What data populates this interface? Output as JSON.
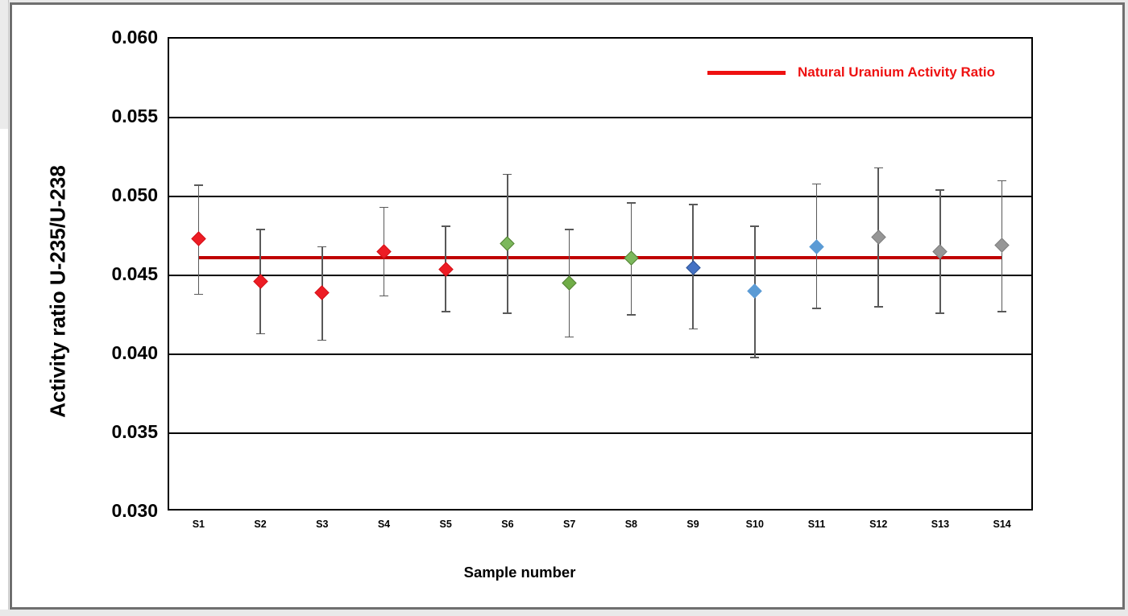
{
  "chart_data": {
    "type": "scatter",
    "title": "",
    "ylabel": "Activity ratio U-235/U-238",
    "xlabel": "Sample number",
    "ylim": [
      0.03,
      0.06
    ],
    "ytick_step": 0.005,
    "ytick_labels": [
      "0.060",
      "0.055",
      "0.050",
      "0.045",
      "0.040",
      "0.035",
      "0.030"
    ],
    "categories": [
      "S1",
      "S2",
      "S3",
      "S4",
      "S5",
      "S6",
      "S7",
      "S8",
      "S9",
      "S10",
      "S11",
      "S12",
      "S13",
      "S14"
    ],
    "grid": true,
    "legend_position": "top-right",
    "error_bar_color": "#595959",
    "points": [
      {
        "label": "S1",
        "value": 0.0472,
        "upper": 0.0506,
        "lower": 0.0437,
        "fill": "#ED1C24",
        "stroke": "#d41118"
      },
      {
        "label": "S2",
        "value": 0.0445,
        "upper": 0.0478,
        "lower": 0.0412,
        "fill": "#ED1C24",
        "stroke": "#d41118"
      },
      {
        "label": "S3",
        "value": 0.0438,
        "upper": 0.0467,
        "lower": 0.0408,
        "fill": "#ED1C24",
        "stroke": "#d41118"
      },
      {
        "label": "S4",
        "value": 0.0464,
        "upper": 0.0492,
        "lower": 0.0436,
        "fill": "#ED1C24",
        "stroke": "#d41118"
      },
      {
        "label": "S5",
        "value": 0.0453,
        "upper": 0.048,
        "lower": 0.0426,
        "fill": "#ED1C24",
        "stroke": "#d41118"
      },
      {
        "label": "S6",
        "value": 0.0469,
        "upper": 0.0513,
        "lower": 0.0425,
        "fill": "#7CB85C",
        "stroke": "#548235"
      },
      {
        "label": "S7",
        "value": 0.0444,
        "upper": 0.0478,
        "lower": 0.041,
        "fill": "#70AD47",
        "stroke": "#548235"
      },
      {
        "label": "S8",
        "value": 0.046,
        "upper": 0.0495,
        "lower": 0.0424,
        "fill": "#7CB85C",
        "stroke": "#548235"
      },
      {
        "label": "S9",
        "value": 0.0454,
        "upper": 0.0494,
        "lower": 0.0415,
        "fill": "#4472C4",
        "stroke": "#2f5597"
      },
      {
        "label": "S10",
        "value": 0.0439,
        "upper": 0.048,
        "lower": 0.0397,
        "fill": "#5B9BD5",
        "stroke": "#5B9BD5"
      },
      {
        "label": "S11",
        "value": 0.0467,
        "upper": 0.0507,
        "lower": 0.0428,
        "fill": "#5B9BD5",
        "stroke": "#5B9BD5"
      },
      {
        "label": "S12",
        "value": 0.0473,
        "upper": 0.0517,
        "lower": 0.0429,
        "fill": "#969696",
        "stroke": "#7f7f7f"
      },
      {
        "label": "S13",
        "value": 0.0464,
        "upper": 0.0503,
        "lower": 0.0425,
        "fill": "#969696",
        "stroke": "#7f7f7f"
      },
      {
        "label": "S14",
        "value": 0.0468,
        "upper": 0.0509,
        "lower": 0.0426,
        "fill": "#969696",
        "stroke": "#7f7f7f"
      }
    ],
    "reference_line": {
      "label": "Natural Uranium Activity Ratio",
      "value": 0.046,
      "color": "#C00000",
      "legend_color": "#EE1111"
    }
  }
}
